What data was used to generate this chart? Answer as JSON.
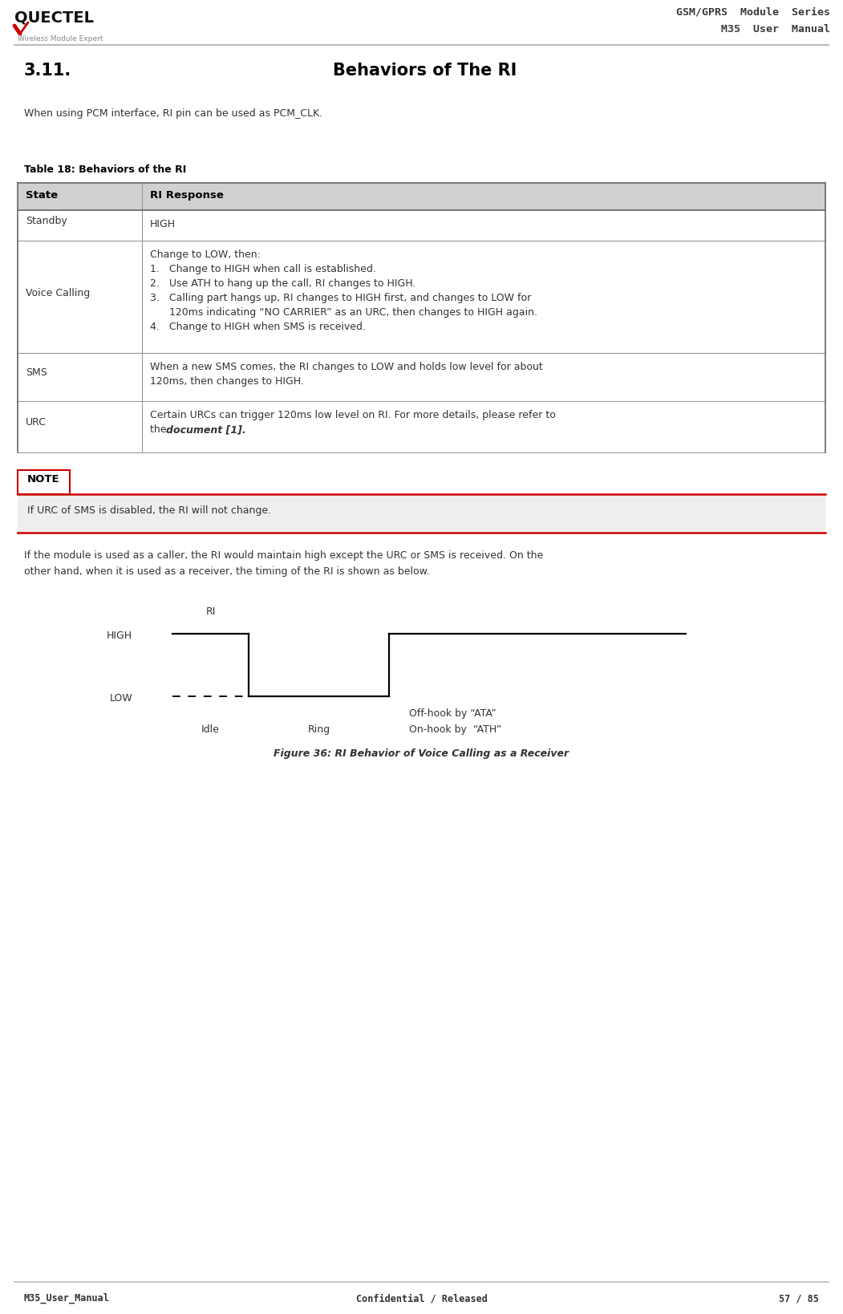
{
  "title_section": "3.11.",
  "title_main": "Behaviors of The RI",
  "intro_text": "When using PCM interface, RI pin can be used as PCM_CLK.",
  "table_title": "Table 18: Behaviors of the RI",
  "table_header": [
    "State",
    "RI Response"
  ],
  "note_label": "NOTE",
  "note_text": "If URC of SMS is disabled, the RI will not change.",
  "para_line1": "If the module is used as a caller, the RI would maintain high except the URC or SMS is received. On the",
  "para_line2": "other hand, when it is used as a receiver, the timing of the RI is shown as below.",
  "figure_caption": "Figure 36: RI Behavior of Voice Calling as a Receiver",
  "fig_ri": "RI",
  "fig_high": "HIGH",
  "fig_low": "LOW",
  "fig_idle": "Idle",
  "fig_ring": "Ring",
  "fig_offhook": "Off-hook by “ATA”",
  "fig_onhook": "On-hook by  “ATH”",
  "header_right_line1": "GSM/GPRS  Module  Series",
  "header_right_line2": "M35  User  Manual",
  "footer_left": "M35_User_Manual",
  "footer_center": "Confidential / Released",
  "footer_right": "57 / 85",
  "bg_color": "#ffffff",
  "table_header_bg": "#d0d0d0",
  "note_bg": "#eeeeee",
  "note_border_color": "#cc0000"
}
